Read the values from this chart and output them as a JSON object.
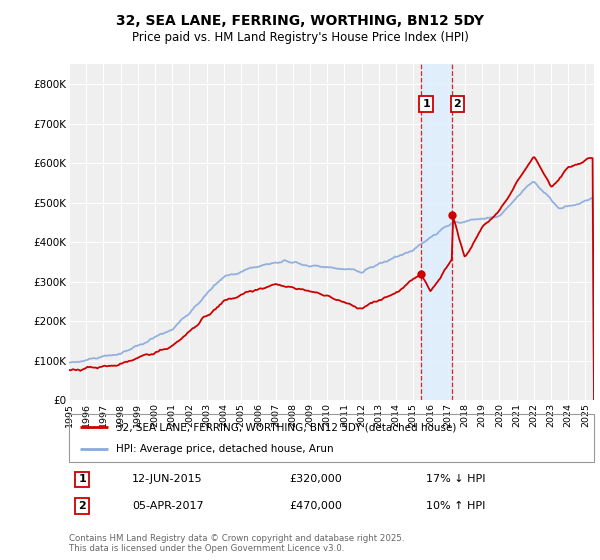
{
  "title": "32, SEA LANE, FERRING, WORTHING, BN12 5DY",
  "subtitle": "Price paid vs. HM Land Registry's House Price Index (HPI)",
  "ylim": [
    0,
    850000
  ],
  "yticks": [
    0,
    100000,
    200000,
    300000,
    400000,
    500000,
    600000,
    700000,
    800000
  ],
  "ytick_labels": [
    "£0",
    "£100K",
    "£200K",
    "£300K",
    "£400K",
    "£500K",
    "£600K",
    "£700K",
    "£800K"
  ],
  "background_color": "#ffffff",
  "plot_bg_color": "#efefef",
  "grid_color": "#ffffff",
  "red_line_color": "#cc0000",
  "blue_line_color": "#88aadd",
  "highlight_fill_color": "#ddeeff",
  "transaction1_date": "12-JUN-2015",
  "transaction1_price": 320000,
  "transaction1_label": "17% ↓ HPI",
  "transaction2_date": "05-APR-2017",
  "transaction2_price": 470000,
  "transaction2_label": "10% ↑ HPI",
  "legend_label1": "32, SEA LANE, FERRING, WORTHING, BN12 5DY (detached house)",
  "legend_label2": "HPI: Average price, detached house, Arun",
  "footer": "Contains HM Land Registry data © Crown copyright and database right 2025.\nThis data is licensed under the Open Government Licence v3.0.",
  "transaction1_x": 2015.44,
  "transaction2_x": 2017.26,
  "xmin": 1995,
  "xmax": 2025.5
}
